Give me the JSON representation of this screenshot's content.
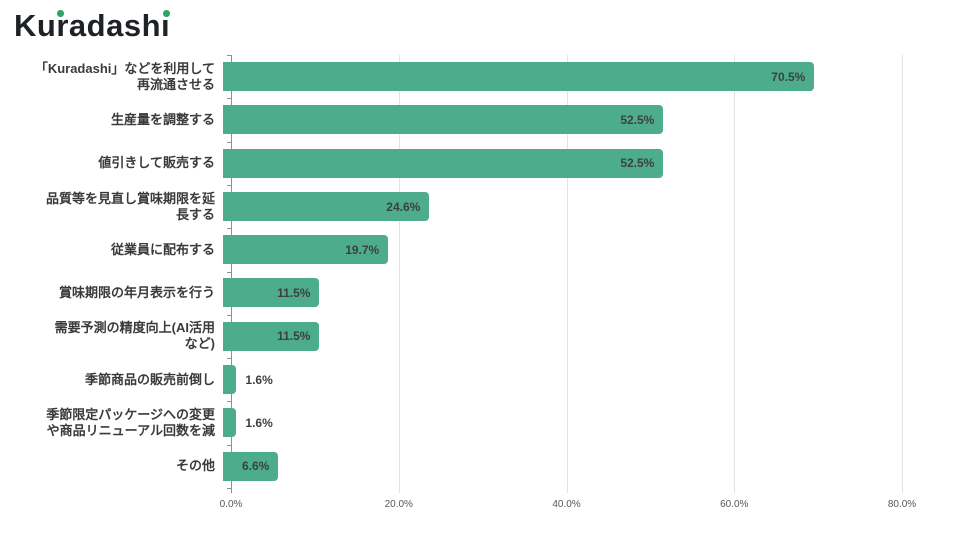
{
  "logo": {
    "full_name": "Kuradashi",
    "part_ku": "Ku",
    "part_r": "r",
    "part_adash": "adash",
    "part_i": "ı",
    "dot_color": "#2da56a",
    "text_color": "#1e2227"
  },
  "chart_data": {
    "type": "bar",
    "orientation": "horizontal",
    "title": "",
    "xlabel": "",
    "ylabel": "",
    "categories": [
      "「Kuradashi」などを利用して再流通させる",
      "生産量を調整する",
      "値引きして販売する",
      "品質等を見直し賞味期限を延長する",
      "従業員に配布する",
      "賞味期限の年月表示を行う",
      "需要予測の精度向上(AI活用など)",
      "季節商品の販売前倒し",
      "季節限定パッケージへの変更や商品リニューアル回数を減",
      "その他"
    ],
    "values": [
      70.5,
      52.5,
      52.5,
      24.6,
      19.7,
      11.5,
      11.5,
      1.6,
      1.6,
      6.6
    ],
    "value_labels": [
      "70.5%",
      "52.5%",
      "52.5%",
      "24.6%",
      "19.7%",
      "11.5%",
      "11.5%",
      "1.6%",
      "1.6%",
      "6.6%"
    ],
    "x_ticks": [
      "0.0%",
      "20.0%",
      "40.0%",
      "60.0%",
      "80.0%"
    ],
    "x_tick_values": [
      0,
      20,
      40,
      60,
      80
    ],
    "xlim": [
      0,
      81.6
    ],
    "grid": "vertical-only",
    "legend": "none",
    "bar_color": "#4cac8b",
    "value_label_color": "#3d4043",
    "gridline_color": "#e3e3e3",
    "axis_color": "#8f8f8f"
  },
  "chart": {
    "rows": [
      {
        "label": "「Kuradashi」などを利用して\n再流通させる",
        "value": 70.5,
        "value_label": "70.5%"
      },
      {
        "label": "生産量を調整する",
        "value": 52.5,
        "value_label": "52.5%"
      },
      {
        "label": "値引きして販売する",
        "value": 52.5,
        "value_label": "52.5%"
      },
      {
        "label": "品質等を見直し賞味期限を延\n長する",
        "value": 24.6,
        "value_label": "24.6%"
      },
      {
        "label": "従業員に配布する",
        "value": 19.7,
        "value_label": "19.7%"
      },
      {
        "label": "賞味期限の年月表示を行う",
        "value": 11.5,
        "value_label": "11.5%"
      },
      {
        "label": "需要予測の精度向上(AI活用\nなど)",
        "value": 11.5,
        "value_label": "11.5%"
      },
      {
        "label": "季節商品の販売前倒し",
        "value": 1.6,
        "value_label": "1.6%"
      },
      {
        "label": "季節限定パッケージへの変更\nや商品リニューアル回数を減",
        "value": 1.6,
        "value_label": "1.6%"
      },
      {
        "label": "その他",
        "value": 6.6,
        "value_label": "6.6%"
      }
    ]
  }
}
